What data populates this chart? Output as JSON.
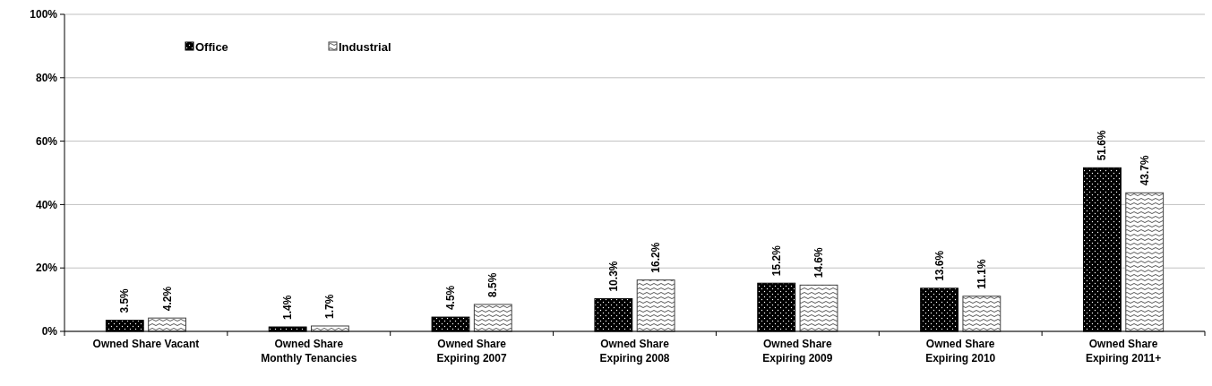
{
  "chart_data": {
    "type": "bar",
    "categories": [
      "Owned Share Vacant",
      "Owned Share Monthly Tenancies",
      "Owned Share Expiring 2007",
      "Owned Share Expiring 2008",
      "Owned Share Expiring 2009",
      "Owned Share Expiring 2010",
      "Owned Share Expiring 2011+"
    ],
    "series": [
      {
        "name": "Office",
        "color": "#000000",
        "values": [
          3.5,
          1.4,
          4.5,
          10.3,
          15.2,
          13.6,
          51.6
        ],
        "value_labels": [
          "3.5%",
          "1.4%",
          "4.5%",
          "10.3%",
          "15.2%",
          "13.6%",
          "51.6%"
        ]
      },
      {
        "name": "Industrial",
        "color": "#404040",
        "values": [
          4.2,
          1.7,
          8.5,
          16.2,
          14.6,
          11.1,
          43.7
        ],
        "value_labels": [
          "4.2%",
          "1.7%",
          "8.5%",
          "16.2%",
          "14.6%",
          "11.1%",
          "43.7%"
        ]
      }
    ],
    "ylim": [
      0,
      100
    ],
    "yticks": [
      {
        "value": 0,
        "label": "0%"
      },
      {
        "value": 20,
        "label": "20%"
      },
      {
        "value": 40,
        "label": "40%"
      },
      {
        "value": 60,
        "label": "60%"
      },
      {
        "value": 80,
        "label": "80%"
      },
      {
        "value": 100,
        "label": "100%"
      }
    ],
    "grid": "y",
    "legend": "top left"
  }
}
